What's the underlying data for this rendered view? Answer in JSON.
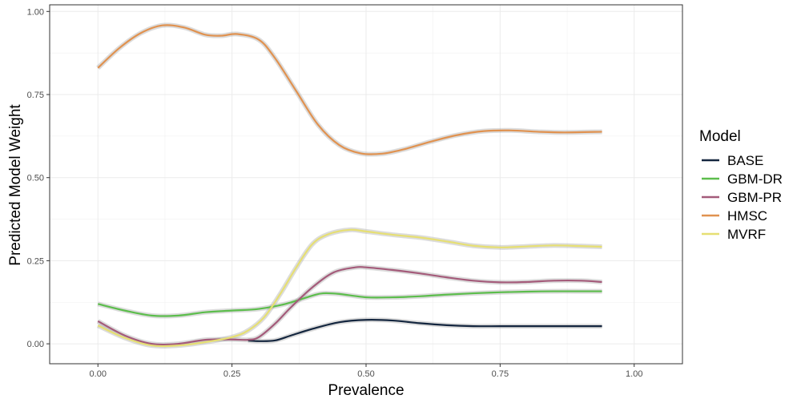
{
  "chart_data": {
    "type": "line",
    "xlabel": "Prevalence",
    "ylabel": "Predicted Model Weight",
    "xlim": [
      -0.09,
      1.09
    ],
    "ylim": [
      -0.06,
      1.02
    ],
    "x_ticks": [
      0.0,
      0.25,
      0.5,
      0.75,
      1.0
    ],
    "x_tick_labels": [
      "0.00",
      "0.25",
      "0.50",
      "0.75",
      "1.00"
    ],
    "y_ticks": [
      0.0,
      0.25,
      0.5,
      0.75,
      1.0
    ],
    "y_tick_labels": [
      "0.00",
      "0.25",
      "0.50",
      "0.75",
      "1.00"
    ],
    "grid": true,
    "legend": {
      "title": "Model",
      "position": "right"
    },
    "series": [
      {
        "name": "BASE",
        "color": "#14263f",
        "points": [
          [
            0.28,
            0.01
          ],
          [
            0.3,
            0.008
          ],
          [
            0.33,
            0.01
          ],
          [
            0.36,
            0.025
          ],
          [
            0.4,
            0.045
          ],
          [
            0.45,
            0.065
          ],
          [
            0.5,
            0.072
          ],
          [
            0.55,
            0.07
          ],
          [
            0.6,
            0.062
          ],
          [
            0.65,
            0.056
          ],
          [
            0.7,
            0.053
          ],
          [
            0.75,
            0.053
          ],
          [
            0.8,
            0.053
          ],
          [
            0.85,
            0.053
          ],
          [
            0.9,
            0.053
          ],
          [
            0.94,
            0.053
          ]
        ]
      },
      {
        "name": "GBM-DR",
        "color": "#5cbd4c",
        "points": [
          [
            0.0,
            0.12
          ],
          [
            0.05,
            0.1
          ],
          [
            0.1,
            0.085
          ],
          [
            0.15,
            0.085
          ],
          [
            0.2,
            0.095
          ],
          [
            0.25,
            0.1
          ],
          [
            0.3,
            0.105
          ],
          [
            0.35,
            0.12
          ],
          [
            0.4,
            0.145
          ],
          [
            0.42,
            0.152
          ],
          [
            0.45,
            0.15
          ],
          [
            0.5,
            0.14
          ],
          [
            0.55,
            0.14
          ],
          [
            0.6,
            0.143
          ],
          [
            0.65,
            0.148
          ],
          [
            0.7,
            0.152
          ],
          [
            0.75,
            0.155
          ],
          [
            0.8,
            0.157
          ],
          [
            0.85,
            0.158
          ],
          [
            0.9,
            0.158
          ],
          [
            0.94,
            0.158
          ]
        ]
      },
      {
        "name": "GBM-PR",
        "color": "#a45b7a",
        "points": [
          [
            0.0,
            0.068
          ],
          [
            0.05,
            0.025
          ],
          [
            0.1,
            0.0
          ],
          [
            0.15,
            0.0
          ],
          [
            0.2,
            0.012
          ],
          [
            0.25,
            0.013
          ],
          [
            0.28,
            0.012
          ],
          [
            0.3,
            0.02
          ],
          [
            0.33,
            0.06
          ],
          [
            0.36,
            0.11
          ],
          [
            0.4,
            0.17
          ],
          [
            0.44,
            0.215
          ],
          [
            0.48,
            0.23
          ],
          [
            0.5,
            0.23
          ],
          [
            0.55,
            0.222
          ],
          [
            0.6,
            0.212
          ],
          [
            0.65,
            0.2
          ],
          [
            0.7,
            0.19
          ],
          [
            0.75,
            0.185
          ],
          [
            0.8,
            0.186
          ],
          [
            0.85,
            0.19
          ],
          [
            0.9,
            0.19
          ],
          [
            0.94,
            0.186
          ]
        ]
      },
      {
        "name": "HMSC",
        "color": "#e09250",
        "points": [
          [
            0.0,
            0.83
          ],
          [
            0.04,
            0.89
          ],
          [
            0.08,
            0.935
          ],
          [
            0.12,
            0.958
          ],
          [
            0.16,
            0.952
          ],
          [
            0.2,
            0.93
          ],
          [
            0.23,
            0.927
          ],
          [
            0.26,
            0.932
          ],
          [
            0.3,
            0.915
          ],
          [
            0.33,
            0.86
          ],
          [
            0.37,
            0.76
          ],
          [
            0.41,
            0.66
          ],
          [
            0.45,
            0.598
          ],
          [
            0.49,
            0.573
          ],
          [
            0.53,
            0.572
          ],
          [
            0.57,
            0.585
          ],
          [
            0.62,
            0.608
          ],
          [
            0.67,
            0.628
          ],
          [
            0.72,
            0.64
          ],
          [
            0.77,
            0.642
          ],
          [
            0.82,
            0.638
          ],
          [
            0.87,
            0.636
          ],
          [
            0.94,
            0.638
          ]
        ]
      },
      {
        "name": "MVRF",
        "color": "#e6df73",
        "points": [
          [
            0.0,
            0.055
          ],
          [
            0.05,
            0.018
          ],
          [
            0.1,
            -0.005
          ],
          [
            0.15,
            -0.005
          ],
          [
            0.2,
            0.005
          ],
          [
            0.25,
            0.02
          ],
          [
            0.28,
            0.04
          ],
          [
            0.31,
            0.08
          ],
          [
            0.34,
            0.15
          ],
          [
            0.37,
            0.23
          ],
          [
            0.4,
            0.3
          ],
          [
            0.43,
            0.33
          ],
          [
            0.47,
            0.343
          ],
          [
            0.5,
            0.338
          ],
          [
            0.55,
            0.328
          ],
          [
            0.6,
            0.32
          ],
          [
            0.65,
            0.308
          ],
          [
            0.7,
            0.295
          ],
          [
            0.75,
            0.29
          ],
          [
            0.8,
            0.293
          ],
          [
            0.85,
            0.296
          ],
          [
            0.9,
            0.294
          ],
          [
            0.94,
            0.292
          ]
        ]
      }
    ]
  }
}
